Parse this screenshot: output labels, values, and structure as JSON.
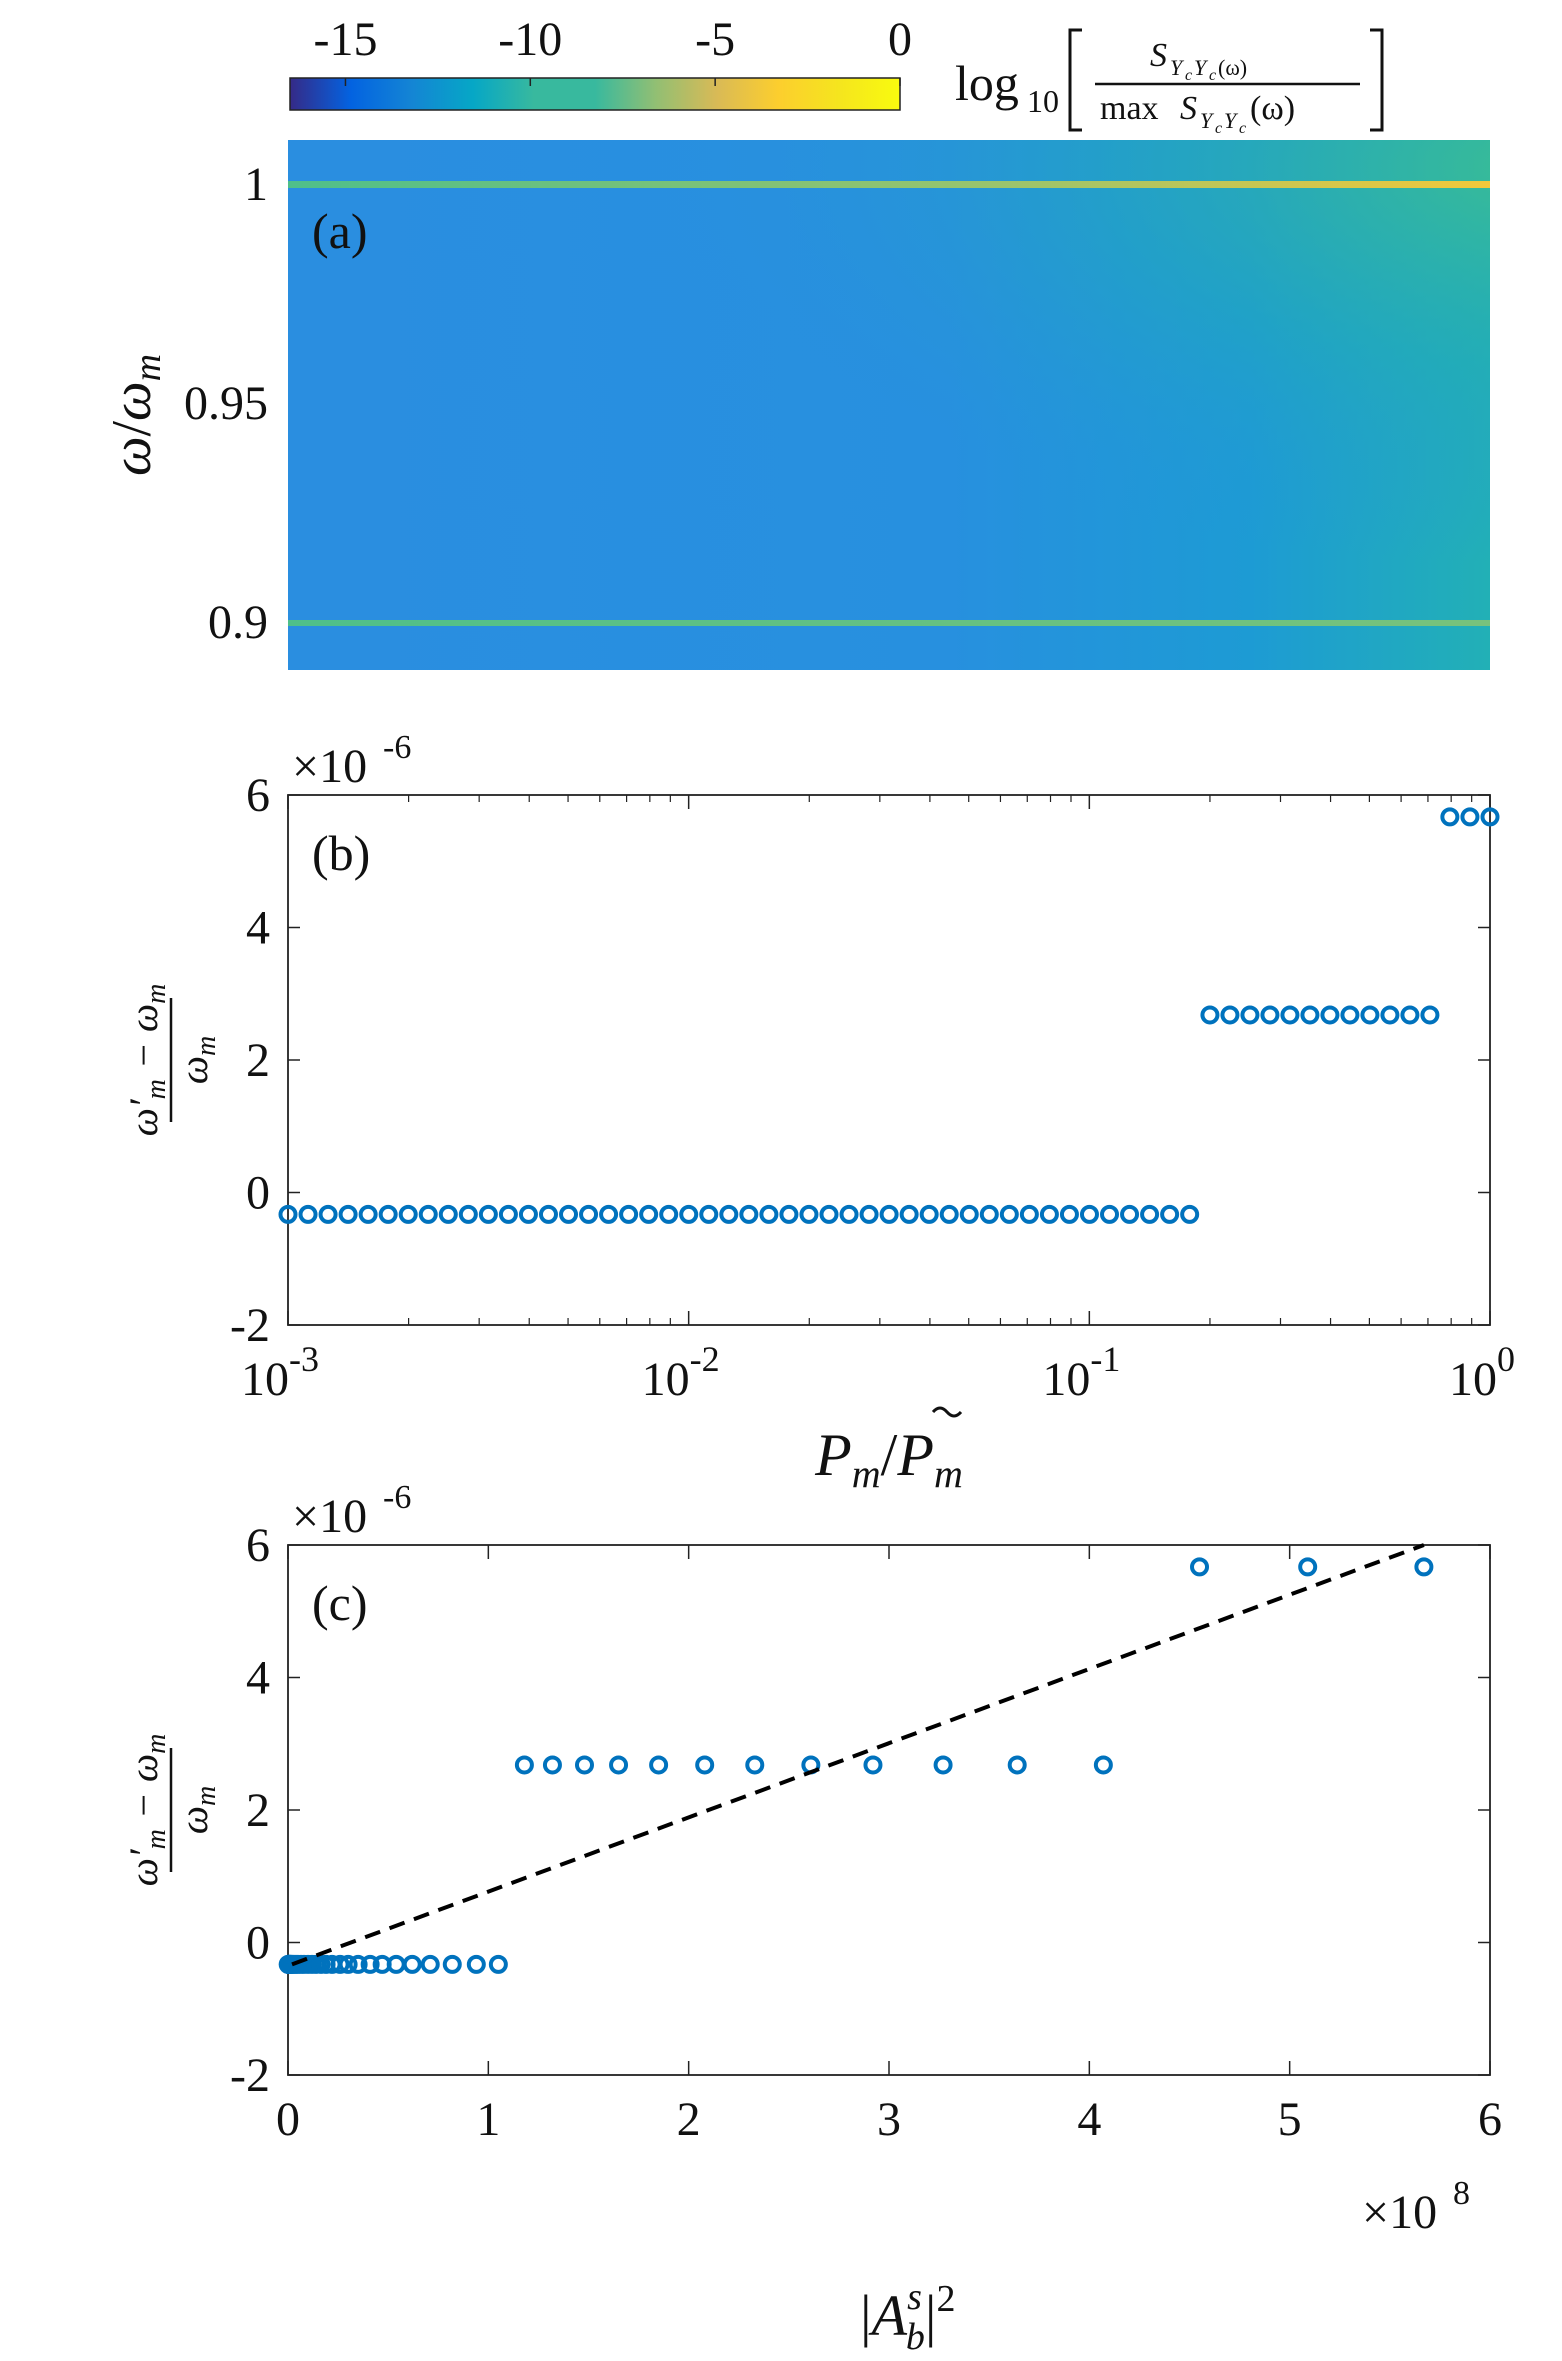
{
  "colorbar": {
    "ticks": [
      "-15",
      "-10",
      "-5",
      "0"
    ],
    "tick_values": [
      -15,
      -10,
      -5,
      0
    ],
    "range": [
      -16.5,
      0
    ],
    "colormap": "parula",
    "label": "log10 [ S_{YcYc(ω)} / max S_{YcYc}(ω) ]",
    "label_parts": {
      "log": "log",
      "sub10": "10",
      "num": "S",
      "num_sub": "Y",
      "num_sub_c": "c",
      "num_sub2": "Y",
      "num_sub2_c": "c",
      "num_arg": "(ω)",
      "den_max": "max ",
      "den": "S",
      "den_arg": "(ω)"
    }
  },
  "chart_data": [
    {
      "panel": "(a)",
      "type": "heatmap",
      "title": "",
      "xlabel": "",
      "ylabel": "ω/ω_m",
      "ylabel_parts": {
        "w": "ω",
        "slash": "/",
        "w2": "ω",
        "sub": "m"
      },
      "yticks": [
        "0.9",
        "0.95",
        "1"
      ],
      "ytick_values": [
        0.9,
        0.95,
        1.0
      ],
      "ylim": [
        0.889,
        1.01
      ],
      "xscale": "log",
      "xlim": [
        0.001,
        1
      ],
      "features": [
        {
          "kind": "resonance-line",
          "y": 1.0,
          "log10_level_left": -8,
          "log10_level_right": -2
        },
        {
          "kind": "resonance-line",
          "y": 0.9,
          "log10_level_left": -8,
          "log10_level_right": -7
        }
      ],
      "background_log10_level_left": -10.5,
      "background_log10_level_right": -8.5
    },
    {
      "panel": "(b)",
      "type": "scatter",
      "title": "",
      "xlabel": "P_m/P̃_m",
      "xlabel_parts": {
        "p": "P",
        "sub": "m",
        "slash": "/",
        "p2": "P",
        "sub2": "m"
      },
      "ylabel": "(ω'_m − ω_m)/ω_m",
      "xscale": "log",
      "xlim": [
        0.001,
        1
      ],
      "xticks": [
        "10",
        "10",
        "10",
        "10"
      ],
      "xtick_exponents": [
        "-3",
        "-2",
        "-1",
        "0"
      ],
      "xtick_values": [
        0.001,
        0.01,
        0.1,
        1
      ],
      "ylim": [
        -2,
        6
      ],
      "yticks": [
        "-2",
        "0",
        "2",
        "4",
        "6"
      ],
      "ytick_values": [
        -2,
        0,
        2,
        4,
        6
      ],
      "y_multiplier": "×10",
      "y_multiplier_exp": "-6",
      "series": [
        {
          "marker": "circle",
          "color": "#0072BD",
          "groups": [
            {
              "x_start": 0.001,
              "x_end": 0.178,
              "count": 46,
              "y": -0.33
            },
            {
              "x_start": 0.2,
              "x_end": 0.708,
              "count": 12,
              "y": 2.68
            },
            {
              "x_start": 0.794,
              "x_end": 1.0,
              "count": 3,
              "y": 5.67
            }
          ]
        }
      ]
    },
    {
      "panel": "(c)",
      "type": "scatter",
      "title": "",
      "xlabel": "|A_b^s|^2",
      "xlabel_parts": {
        "bar1": "|",
        "a": "A",
        "sup": "s",
        "sub": "b",
        "bar2": "|",
        "sq": "2"
      },
      "ylabel": "(ω'_m − ω_m)/ω_m",
      "xlim": [
        0,
        6
      ],
      "xticks": [
        "0",
        "1",
        "2",
        "3",
        "4",
        "5",
        "6"
      ],
      "xtick_values": [
        0,
        1,
        2,
        3,
        4,
        5,
        6
      ],
      "x_multiplier": "×10",
      "x_multiplier_exp": "8",
      "ylim": [
        -2,
        6
      ],
      "yticks": [
        "-2",
        "0",
        "2",
        "4",
        "6"
      ],
      "ytick_values": [
        -2,
        0,
        2,
        4,
        6
      ],
      "y_multiplier": "×10",
      "y_multiplier_exp": "-6",
      "series": [
        {
          "marker": "circle",
          "color": "#0072BD",
          "points": [
            [
              0.001,
              -0.33
            ],
            [
              0.002,
              -0.33
            ],
            [
              0.003,
              -0.33
            ],
            [
              0.004,
              -0.33
            ],
            [
              0.006,
              -0.33
            ],
            [
              0.008,
              -0.33
            ],
            [
              0.01,
              -0.33
            ],
            [
              0.013,
              -0.33
            ],
            [
              0.017,
              -0.33
            ],
            [
              0.022,
              -0.33
            ],
            [
              0.03,
              -0.33
            ],
            [
              0.04,
              -0.33
            ],
            [
              0.05,
              -0.33
            ],
            [
              0.065,
              -0.33
            ],
            [
              0.08,
              -0.33
            ],
            [
              0.1,
              -0.33
            ],
            [
              0.12,
              -0.33
            ],
            [
              0.14,
              -0.33
            ],
            [
              0.165,
              -0.33
            ],
            [
              0.19,
              -0.33
            ],
            [
              0.22,
              -0.33
            ],
            [
              0.26,
              -0.33
            ],
            [
              0.3,
              -0.33
            ],
            [
              0.35,
              -0.33
            ],
            [
              0.41,
              -0.33
            ],
            [
              0.47,
              -0.33
            ],
            [
              0.54,
              -0.33
            ],
            [
              0.62,
              -0.33
            ],
            [
              0.71,
              -0.33
            ],
            [
              0.82,
              -0.33
            ],
            [
              0.94,
              -0.33
            ],
            [
              1.05,
              -0.33
            ],
            [
              1.18,
              2.68
            ],
            [
              1.32,
              2.68
            ],
            [
              1.48,
              2.68
            ],
            [
              1.65,
              2.68
            ],
            [
              1.85,
              2.68
            ],
            [
              2.08,
              2.68
            ],
            [
              2.33,
              2.68
            ],
            [
              2.61,
              2.68
            ],
            [
              2.92,
              2.68
            ],
            [
              3.27,
              2.68
            ],
            [
              3.64,
              2.68
            ],
            [
              4.07,
              2.68
            ],
            [
              4.55,
              5.67
            ],
            [
              5.09,
              5.67
            ],
            [
              5.67,
              5.67
            ]
          ]
        },
        {
          "kind": "fit-line",
          "style": "dashed",
          "color": "#000000",
          "points": [
            [
              0.02,
              -0.33
            ],
            [
              5.67,
              6.0
            ]
          ]
        }
      ]
    }
  ]
}
